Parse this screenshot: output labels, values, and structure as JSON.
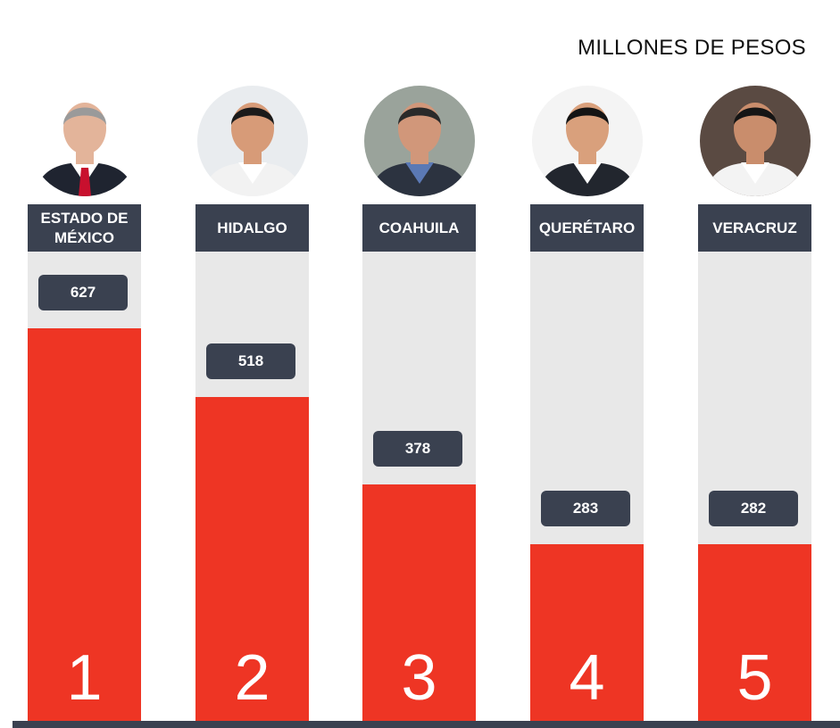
{
  "unit_label": "MILLONES DE PESOS",
  "colors": {
    "bar": "#ee3524",
    "track": "#e8e8e8",
    "label_bg": "#3a4150"
  },
  "chart_data": {
    "type": "bar",
    "title": "",
    "ylabel": "MILLONES DE PESOS",
    "ylim": [
      0,
      750
    ],
    "grid": false,
    "legend": "none",
    "categories": [
      "ESTADO DE\nMÉXICO",
      "HIDALGO",
      "COAHUILA",
      "QUERÉTARO",
      "VERACRUZ"
    ],
    "values": [
      627,
      518,
      378,
      283,
      282
    ],
    "ranks": [
      "1",
      "2",
      "3",
      "4",
      "5"
    ]
  },
  "avatars": [
    {
      "icon": "person-avatar-icon",
      "bg": "#ffffff",
      "suit": "#1f2430",
      "shirt": "#ffffff",
      "tie": "#c8102e",
      "hair": "#9a9a9a",
      "skin": "#e3b49a"
    },
    {
      "icon": "person-avatar-icon",
      "bg": "#e9ecef",
      "suit": "#f2f2f2",
      "shirt": "#ffffff",
      "tie": "",
      "hair": "#1a1a1a",
      "skin": "#d79b78"
    },
    {
      "icon": "person-avatar-icon",
      "bg": "#9aa39b",
      "suit": "#2c3340",
      "shirt": "#5b79b5",
      "tie": "",
      "hair": "#2a2a2a",
      "skin": "#d1977a"
    },
    {
      "icon": "person-avatar-icon",
      "bg": "#f4f4f4",
      "suit": "#22262e",
      "shirt": "#ffffff",
      "tie": "",
      "hair": "#141414",
      "skin": "#d9a07c"
    },
    {
      "icon": "person-avatar-icon",
      "bg": "#5a4a42",
      "suit": "#f3f3f3",
      "shirt": "#ffffff",
      "tie": "",
      "hair": "#151515",
      "skin": "#c98d6c"
    }
  ]
}
